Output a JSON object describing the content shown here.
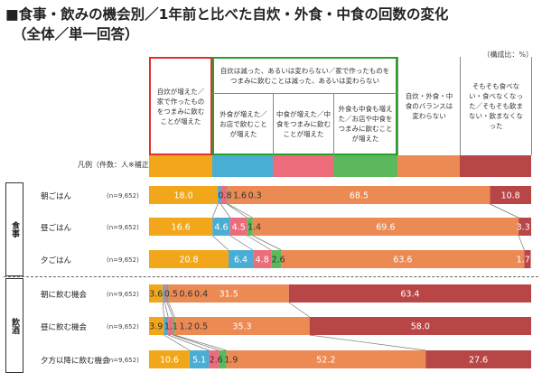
{
  "title": "■食事・飲みの機会別／1年前と比べた自炊・外食・中食の回数の変化",
  "subtitle": "（全体／単一回答）",
  "unit_note": "（構成比：%）",
  "legend_label": "凡例（件数：人※補正後）",
  "header": {
    "col1": "自炊が増えた／家で作ったものをつまみに飲むことが増えた",
    "group": "自炊は減った、あるいは変わらない／家で作ったものをつまみに飲むことは減った、あるいは変わらない",
    "col2": "外食が増えた／お店で飲むことが増えた",
    "col3": "中食が増えた／中食をつまみに飲むことが増えた",
    "col4": "外食も中食も増えた／お店や中食をつまみに飲むことが増えた",
    "col5": "自炊・外食・中食のバランスは変わらない",
    "col6": "そもそも食べない・食べなくなった／そもそも飲まない・飲まなくなった"
  },
  "groups": {
    "meal": "食事",
    "drink": "飲酒"
  },
  "colors": [
    "#f2a71b",
    "#4aaed4",
    "#ec6c7c",
    "#5cb85c",
    "#ec8a54",
    "#b94646"
  ],
  "chart_data": {
    "type": "bar",
    "stacked": true,
    "orientation": "horizontal",
    "title": "食事・飲みの機会別／1年前と比べた自炊・外食・中食の回数の変化",
    "unit": "%",
    "categories": [
      "朝ごはん",
      "昼ごはん",
      "夕ごはん",
      "朝に飲む機会",
      "昼に飲む機会",
      "夕方以降に飲む機会"
    ],
    "n_labels": [
      "(n=9,652)",
      "(n=9,652)",
      "(n=9,652)",
      "(n=9,652)",
      "(n=9,652)",
      "(n=9,652)"
    ],
    "series": [
      {
        "name": "自炊が増えた",
        "values": [
          18.0,
          16.6,
          20.8,
          3.6,
          3.9,
          10.6
        ]
      },
      {
        "name": "外食が増えた",
        "values": [
          0.8,
          4.6,
          6.4,
          0.5,
          1.1,
          5.1
        ]
      },
      {
        "name": "中食が増えた",
        "values": [
          1.6,
          4.5,
          4.8,
          0.6,
          1.2,
          2.6
        ]
      },
      {
        "name": "外食も中食も増えた",
        "values": [
          0.3,
          1.4,
          2.6,
          0.4,
          0.5,
          1.9
        ]
      },
      {
        "name": "自炊・外食・中食のバランスは変わらない",
        "values": [
          68.5,
          69.6,
          63.6,
          31.5,
          35.3,
          52.2
        ]
      },
      {
        "name": "そもそも食べない・飲まない",
        "values": [
          10.8,
          3.3,
          1.7,
          63.4,
          58.0,
          27.6
        ]
      }
    ],
    "display_labels": [
      [
        "18.0",
        "0.8",
        "1.6",
        "0.3",
        "68.5",
        "10.8"
      ],
      [
        "16.6",
        "4.6",
        "4.5",
        "1.4",
        "69.6",
        "3.3"
      ],
      [
        "20.8",
        "6.4",
        "4.8",
        "2.6",
        "63.6",
        "1.7"
      ],
      [
        "3.6",
        "0.5",
        "0.6",
        "0.4",
        "31.5",
        "63.4"
      ],
      [
        "3.9",
        "1.1",
        "1.2",
        "0.5",
        "35.3",
        "58.0"
      ],
      [
        "10.6",
        "5.1",
        "2.6",
        "1.9",
        "52.2",
        "27.6"
      ]
    ],
    "xlim": [
      0,
      100
    ]
  }
}
